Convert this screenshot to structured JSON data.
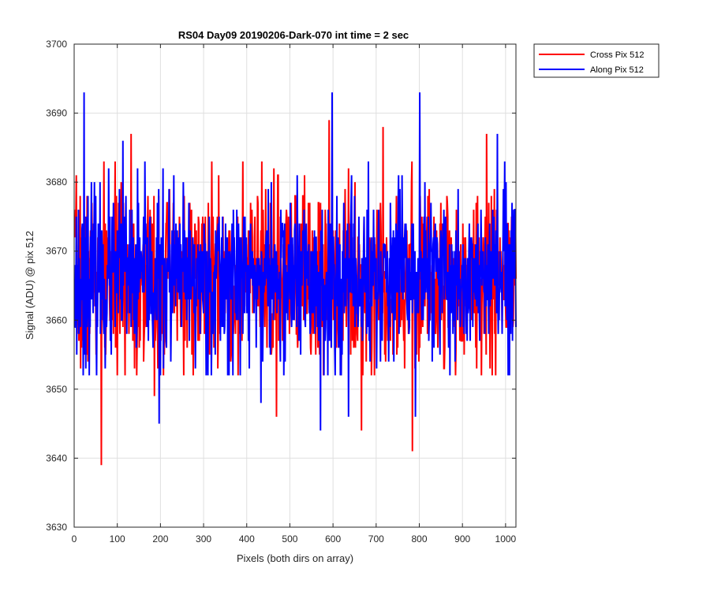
{
  "chart_data": {
    "type": "line",
    "title": "RS04 Day09 20190206-Dark-070 int time = 2 sec",
    "xlabel": "Pixels (both dirs on array)",
    "ylabel": "Signal (ADU) @ pix 512",
    "xlim": [
      0,
      1024
    ],
    "ylim": [
      3630,
      3700
    ],
    "xticks": [
      0,
      100,
      200,
      300,
      400,
      500,
      600,
      700,
      800,
      900,
      1000
    ],
    "yticks": [
      3630,
      3640,
      3650,
      3660,
      3670,
      3680,
      3690,
      3700
    ],
    "grid": true,
    "legend_position": "outside-top-right",
    "n_points": 1024,
    "series": [
      {
        "name": "Cross Pix 512",
        "color": "#ff0000",
        "mean": 3666,
        "stddev": 6.5,
        "noise_seed": 7,
        "peaks": [
          {
            "x": 62,
            "y": 3639
          },
          {
            "x": 131,
            "y": 3687
          },
          {
            "x": 185,
            "y": 3649
          },
          {
            "x": 468,
            "y": 3646
          },
          {
            "x": 590,
            "y": 3689
          },
          {
            "x": 665,
            "y": 3644
          },
          {
            "x": 715,
            "y": 3688
          },
          {
            "x": 783,
            "y": 3641
          },
          {
            "x": 955,
            "y": 3687
          }
        ]
      },
      {
        "name": "Along Pix 512",
        "color": "#0000ff",
        "mean": 3666,
        "stddev": 6.2,
        "noise_seed": 23,
        "peaks": [
          {
            "x": 22,
            "y": 3693
          },
          {
            "x": 112,
            "y": 3686
          },
          {
            "x": 196,
            "y": 3645
          },
          {
            "x": 432,
            "y": 3648
          },
          {
            "x": 570,
            "y": 3644
          },
          {
            "x": 597,
            "y": 3693
          },
          {
            "x": 635,
            "y": 3646
          },
          {
            "x": 790,
            "y": 3646
          },
          {
            "x": 800,
            "y": 3693
          },
          {
            "x": 980,
            "y": 3687
          }
        ]
      }
    ]
  }
}
